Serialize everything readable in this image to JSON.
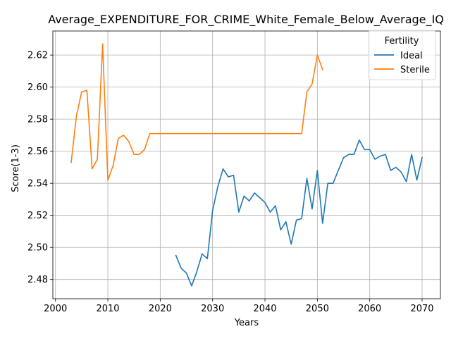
{
  "chart_data": {
    "type": "line",
    "title": "Average_EXPENDITURE_FOR_CRIME_White_Female_Below_Average_IQ",
    "xlabel": "Years",
    "ylabel": "Score(1-3)",
    "xlim": [
      1999.5,
      2073.5
    ],
    "ylim": [
      2.468,
      2.635
    ],
    "xticks": [
      2000,
      2010,
      2020,
      2030,
      2040,
      2050,
      2060,
      2070
    ],
    "xtick_labels": [
      "2000",
      "2010",
      "2020",
      "2030",
      "2040",
      "2050",
      "2060",
      "2070"
    ],
    "yticks": [
      2.48,
      2.5,
      2.52,
      2.54,
      2.56,
      2.58,
      2.6,
      2.62
    ],
    "ytick_labels": [
      "2.48",
      "2.50",
      "2.52",
      "2.54",
      "2.56",
      "2.58",
      "2.60",
      "2.62"
    ],
    "grid": true,
    "legend": {
      "title": "Fertility",
      "position": "top-right"
    },
    "series": [
      {
        "name": "Ideal",
        "color": "#1f77b4",
        "points": [
          [
            2023,
            2.495
          ],
          [
            2024,
            2.487
          ],
          [
            2025,
            2.484
          ],
          [
            2026,
            2.476
          ],
          [
            2027,
            2.485
          ],
          [
            2028,
            2.496
          ],
          [
            2029,
            2.493
          ],
          [
            2030,
            2.523
          ],
          [
            2031,
            2.538
          ],
          [
            2032,
            2.549
          ],
          [
            2033,
            2.544
          ],
          [
            2034,
            2.545
          ],
          [
            2035,
            2.522
          ],
          [
            2036,
            2.532
          ],
          [
            2037,
            2.529
          ],
          [
            2038,
            2.534
          ],
          [
            2039,
            2.531
          ],
          [
            2040,
            2.528
          ],
          [
            2041,
            2.522
          ],
          [
            2042,
            2.526
          ],
          [
            2043,
            2.511
          ],
          [
            2044,
            2.516
          ],
          [
            2045,
            2.502
          ],
          [
            2046,
            2.517
          ],
          [
            2047,
            2.518
          ],
          [
            2048,
            2.543
          ],
          [
            2049,
            2.524
          ],
          [
            2050,
            2.548
          ],
          [
            2051,
            2.515
          ],
          [
            2052,
            2.54
          ],
          [
            2053,
            2.54
          ],
          [
            2054,
            2.548
          ],
          [
            2055,
            2.556
          ],
          [
            2056,
            2.558
          ],
          [
            2057,
            2.558
          ],
          [
            2058,
            2.567
          ],
          [
            2059,
            2.561
          ],
          [
            2060,
            2.561
          ],
          [
            2061,
            2.555
          ],
          [
            2062,
            2.557
          ],
          [
            2063,
            2.558
          ],
          [
            2064,
            2.548
          ],
          [
            2065,
            2.55
          ],
          [
            2066,
            2.547
          ],
          [
            2067,
            2.541
          ],
          [
            2068,
            2.558
          ],
          [
            2069,
            2.542
          ],
          [
            2070,
            2.556
          ]
        ]
      },
      {
        "name": "Sterile",
        "color": "#ff7f0e",
        "points": [
          [
            2003,
            2.553
          ],
          [
            2004,
            2.582
          ],
          [
            2005,
            2.597
          ],
          [
            2006,
            2.598
          ],
          [
            2007,
            2.549
          ],
          [
            2008,
            2.555
          ],
          [
            2009,
            2.627
          ],
          [
            2010,
            2.542
          ],
          [
            2011,
            2.551
          ],
          [
            2012,
            2.568
          ],
          [
            2013,
            2.57
          ],
          [
            2014,
            2.566
          ],
          [
            2015,
            2.558
          ],
          [
            2016,
            2.558
          ],
          [
            2017,
            2.561
          ],
          [
            2018,
            2.571
          ],
          [
            2019,
            2.571
          ],
          [
            2020,
            2.571
          ],
          [
            2025,
            2.571
          ],
          [
            2030,
            2.571
          ],
          [
            2035,
            2.571
          ],
          [
            2040,
            2.571
          ],
          [
            2045,
            2.571
          ],
          [
            2047,
            2.571
          ],
          [
            2048,
            2.597
          ],
          [
            2049,
            2.602
          ],
          [
            2050,
            2.62
          ],
          [
            2051,
            2.611
          ]
        ]
      }
    ]
  }
}
